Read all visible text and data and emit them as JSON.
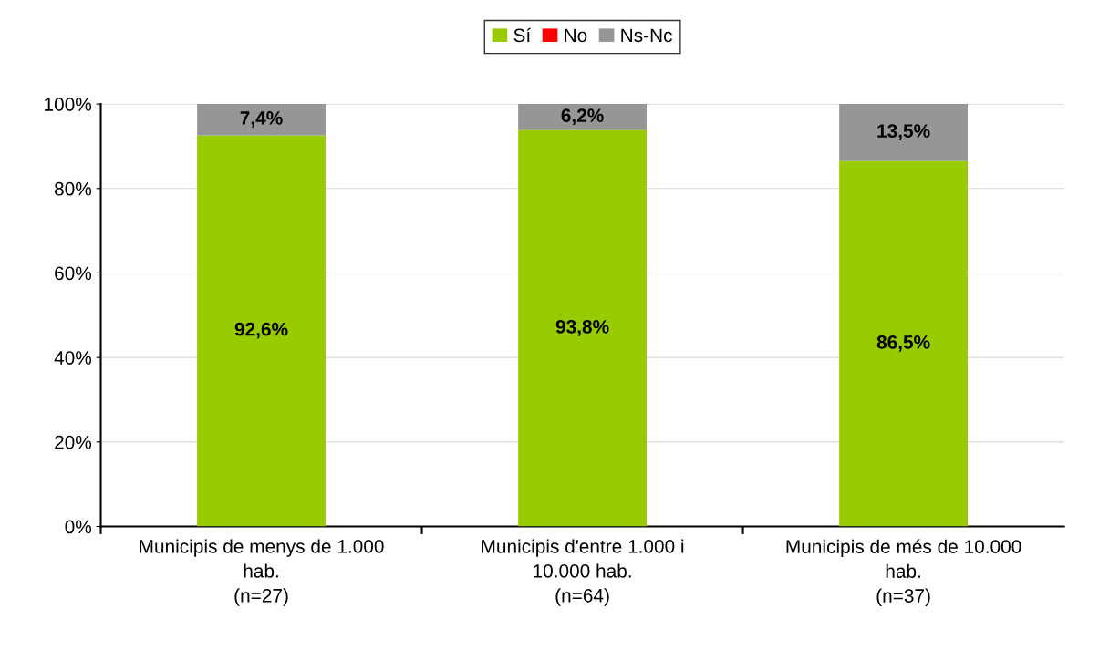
{
  "chart_data": {
    "type": "bar",
    "stacked": true,
    "categories": [
      "Municipis de menys de 1.000\nhab.\n(n=27)",
      "Municipis d'entre 1.000 i\n10.000 hab.\n(n=64)",
      "Municipis de més de 10.000\nhab.\n(n=37)"
    ],
    "series": [
      {
        "name": "Sí",
        "color": "#99cc00",
        "values": [
          92.6,
          93.8,
          86.5
        ],
        "value_labels": [
          "92,6%",
          "93,8%",
          "86,5%"
        ]
      },
      {
        "name": "No",
        "color": "#ff0000",
        "values": [
          0,
          0,
          0
        ],
        "value_labels": [
          null,
          null,
          null
        ]
      },
      {
        "name": "Ns-Nc",
        "color": "#969696",
        "values": [
          7.4,
          6.2,
          13.5
        ],
        "value_labels": [
          "7,4%",
          "6,2%",
          "13,5%"
        ]
      }
    ],
    "ylim": [
      0,
      100
    ],
    "yticks": [
      {
        "value": 0,
        "label": "0%"
      },
      {
        "value": 20,
        "label": "20%"
      },
      {
        "value": 40,
        "label": "40%"
      },
      {
        "value": 60,
        "label": "60%"
      },
      {
        "value": 80,
        "label": "80%"
      },
      {
        "value": 100,
        "label": "100%"
      }
    ],
    "grid": "y",
    "legend": "top"
  }
}
